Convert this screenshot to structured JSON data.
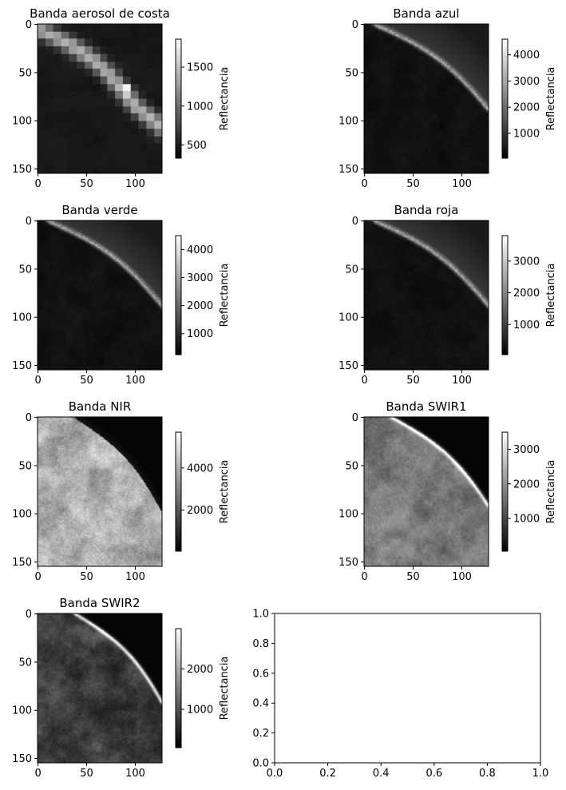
{
  "chart_data": [
    {
      "type": "heatmap",
      "title": "Banda aerosol de costa",
      "colormap": "gray",
      "x_ticks": [
        0,
        50,
        100
      ],
      "y_ticks": [
        0,
        50,
        100,
        150
      ],
      "image_extent": {
        "x": [
          0,
          127
        ],
        "y": [
          0,
          154
        ]
      },
      "colorbar": {
        "label": "Reflectancia",
        "range": [
          330,
          1860
        ],
        "ticks": [
          500,
          1000,
          1500
        ]
      },
      "scene": {
        "kind": "coastal_band",
        "coast_line": [
          [
            0,
            5
          ],
          [
            100,
            85
          ]
        ],
        "blur": 8
      }
    },
    {
      "type": "heatmap",
      "title": "Banda azul",
      "colormap": "gray",
      "x_ticks": [
        0,
        50,
        100
      ],
      "y_ticks": [
        0,
        50,
        100,
        150
      ],
      "image_extent": {
        "x": [
          0,
          127
        ],
        "y": [
          0,
          154
        ]
      },
      "colorbar": {
        "label": "Reflectancia",
        "range": [
          50,
          4600
        ],
        "ticks": [
          1000,
          2000,
          3000,
          4000
        ]
      },
      "scene": {
        "kind": "bright_coast",
        "coast_line": [
          [
            15,
            0
          ],
          [
            127,
            85
          ]
        ]
      }
    },
    {
      "type": "heatmap",
      "title": "Banda verde",
      "colormap": "gray",
      "x_ticks": [
        0,
        50,
        100
      ],
      "y_ticks": [
        0,
        50,
        100,
        150
      ],
      "image_extent": {
        "x": [
          0,
          127
        ],
        "y": [
          0,
          154
        ]
      },
      "colorbar": {
        "label": "Reflectancia",
        "range": [
          250,
          4500
        ],
        "ticks": [
          1000,
          2000,
          3000,
          4000
        ]
      },
      "scene": {
        "kind": "bright_coast",
        "coast_line": [
          [
            15,
            0
          ],
          [
            127,
            85
          ]
        ]
      }
    },
    {
      "type": "heatmap",
      "title": "Banda roja",
      "colormap": "gray",
      "x_ticks": [
        0,
        50,
        100
      ],
      "y_ticks": [
        0,
        50,
        100,
        150
      ],
      "image_extent": {
        "x": [
          0,
          127
        ],
        "y": [
          0,
          154
        ]
      },
      "colorbar": {
        "label": "Reflectancia",
        "range": [
          50,
          3800
        ],
        "ticks": [
          1000,
          2000,
          3000
        ]
      },
      "scene": {
        "kind": "bright_coast",
        "coast_line": [
          [
            15,
            0
          ],
          [
            127,
            85
          ]
        ]
      }
    },
    {
      "type": "heatmap",
      "title": "Banda NIR",
      "colormap": "gray",
      "x_ticks": [
        0,
        50,
        100
      ],
      "y_ticks": [
        0,
        50,
        100,
        150
      ],
      "image_extent": {
        "x": [
          0,
          127
        ],
        "y": [
          0,
          154
        ]
      },
      "colorbar": {
        "label": "Reflectancia",
        "range": [
          50,
          5700
        ],
        "ticks": [
          2000,
          4000
        ]
      },
      "scene": {
        "kind": "bright_land",
        "coast_line": [
          [
            40,
            0
          ],
          [
            127,
            95
          ]
        ]
      }
    },
    {
      "type": "heatmap",
      "title": "Banda SWIR1",
      "colormap": "gray",
      "x_ticks": [
        0,
        50,
        100
      ],
      "y_ticks": [
        0,
        50,
        100,
        150
      ],
      "image_extent": {
        "x": [
          0,
          127
        ],
        "y": [
          0,
          154
        ]
      },
      "colorbar": {
        "label": "Reflectancia",
        "range": [
          50,
          3500
        ],
        "ticks": [
          1000,
          2000,
          3000
        ]
      },
      "scene": {
        "kind": "mid_land",
        "coast_line": [
          [
            30,
            0
          ],
          [
            127,
            90
          ]
        ]
      }
    },
    {
      "type": "heatmap",
      "title": "Banda SWIR2",
      "colormap": "gray",
      "x_ticks": [
        0,
        50,
        100
      ],
      "y_ticks": [
        0,
        50,
        100,
        150
      ],
      "image_extent": {
        "x": [
          0,
          127
        ],
        "y": [
          0,
          154
        ]
      },
      "colorbar": {
        "label": "Reflectancia",
        "range": [
          50,
          3000
        ],
        "ticks": [
          1000,
          2000
        ]
      },
      "scene": {
        "kind": "dark_land",
        "coast_line": [
          [
            40,
            0
          ],
          [
            127,
            90
          ]
        ]
      }
    },
    {
      "type": "line",
      "title": "",
      "series": [],
      "xlim": [
        0,
        1
      ],
      "ylim": [
        0,
        1
      ],
      "x_ticks": [
        "0.0",
        "0.2",
        "0.4",
        "0.6",
        "0.8",
        "1.0"
      ],
      "y_ticks": [
        "0.0",
        "0.2",
        "0.4",
        "0.6",
        "0.8",
        "1.0"
      ]
    }
  ]
}
